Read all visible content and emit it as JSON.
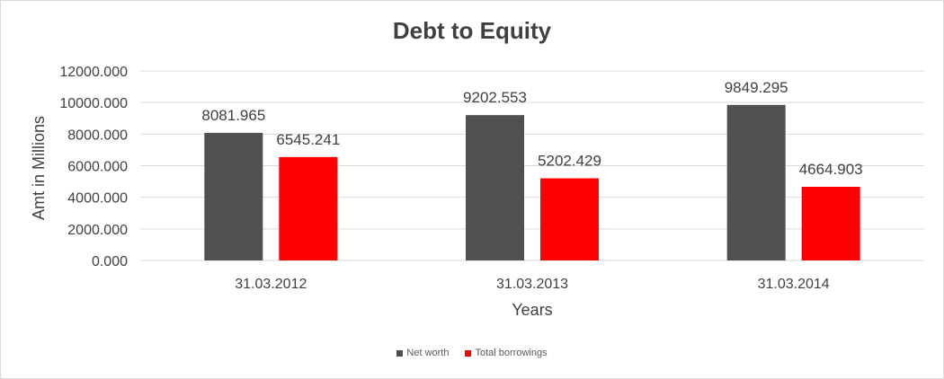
{
  "chart_data": {
    "type": "bar",
    "title": "Debt to Equity",
    "xlabel": "Years",
    "ylabel": "Amt in Millions",
    "categories": [
      "31.03.2012",
      "31.03.2013",
      "31.03.2014"
    ],
    "series": [
      {
        "name": "Net worth",
        "values": [
          8081.965,
          9202.553,
          9849.295
        ],
        "color": "#505050"
      },
      {
        "name": "Total borrowings",
        "values": [
          6545.241,
          5202.429,
          4664.903
        ],
        "color": "#ff0000"
      }
    ],
    "ylim": [
      0,
      12000
    ],
    "yticks": [
      0,
      2000,
      4000,
      6000,
      8000,
      10000,
      12000
    ],
    "ytick_labels": [
      "0.000",
      "2000.000",
      "4000.000",
      "6000.000",
      "8000.000",
      "10000.000",
      "12000.000"
    ],
    "value_labels": [
      [
        "8081.965",
        "9202.553",
        "9849.295"
      ],
      [
        "6545.241",
        "5202.429",
        "4664.903"
      ]
    ],
    "grid": true,
    "legend_position": "bottom"
  }
}
